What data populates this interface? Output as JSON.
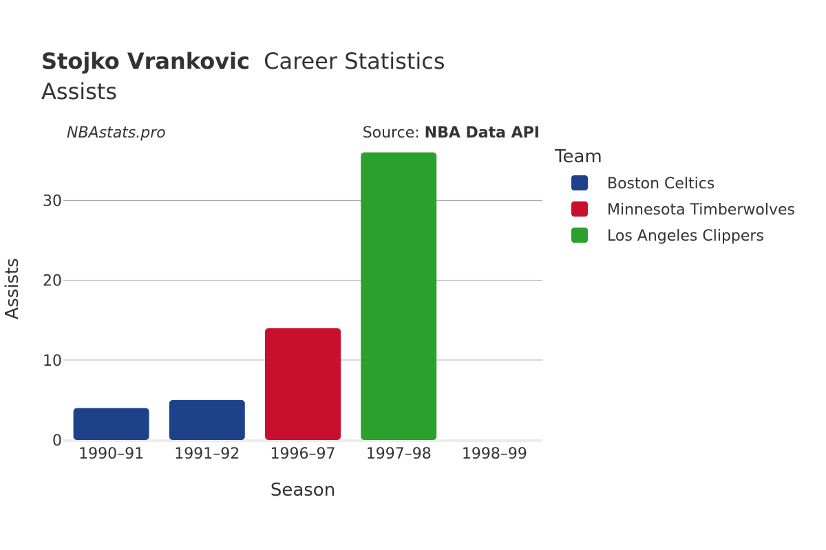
{
  "header": {
    "player_name": "Stojko Vrankovic",
    "title_suffix": "Career Statistics",
    "subtitle": "Assists",
    "credit": "NBAstats.pro",
    "source_prefix": "Source: ",
    "source_name": "NBA Data API"
  },
  "legend": {
    "title": "Team"
  },
  "chart_data": {
    "type": "bar",
    "title": "Stojko Vrankovic Career Statistics",
    "subtitle": "Assists",
    "xlabel": "Season",
    "ylabel": "Assists",
    "ylim": [
      0,
      37
    ],
    "yticks": [
      0,
      10,
      20,
      30
    ],
    "grid": true,
    "legend_placement": "right",
    "categories": [
      "1990–91",
      "1991–92",
      "1996–97",
      "1997–98",
      "1998–99"
    ],
    "values": [
      4,
      5,
      14,
      36,
      0
    ],
    "bar_teams": [
      "Boston Celtics",
      "Boston Celtics",
      "Minnesota Timberwolves",
      "Los Angeles Clippers",
      "Los Angeles Clippers"
    ],
    "series": [
      {
        "name": "Boston Celtics",
        "color": "#1d428a"
      },
      {
        "name": "Minnesota Timberwolves",
        "color": "#c8102e"
      },
      {
        "name": "Los Angeles Clippers",
        "color": "#2ca02c"
      }
    ]
  }
}
